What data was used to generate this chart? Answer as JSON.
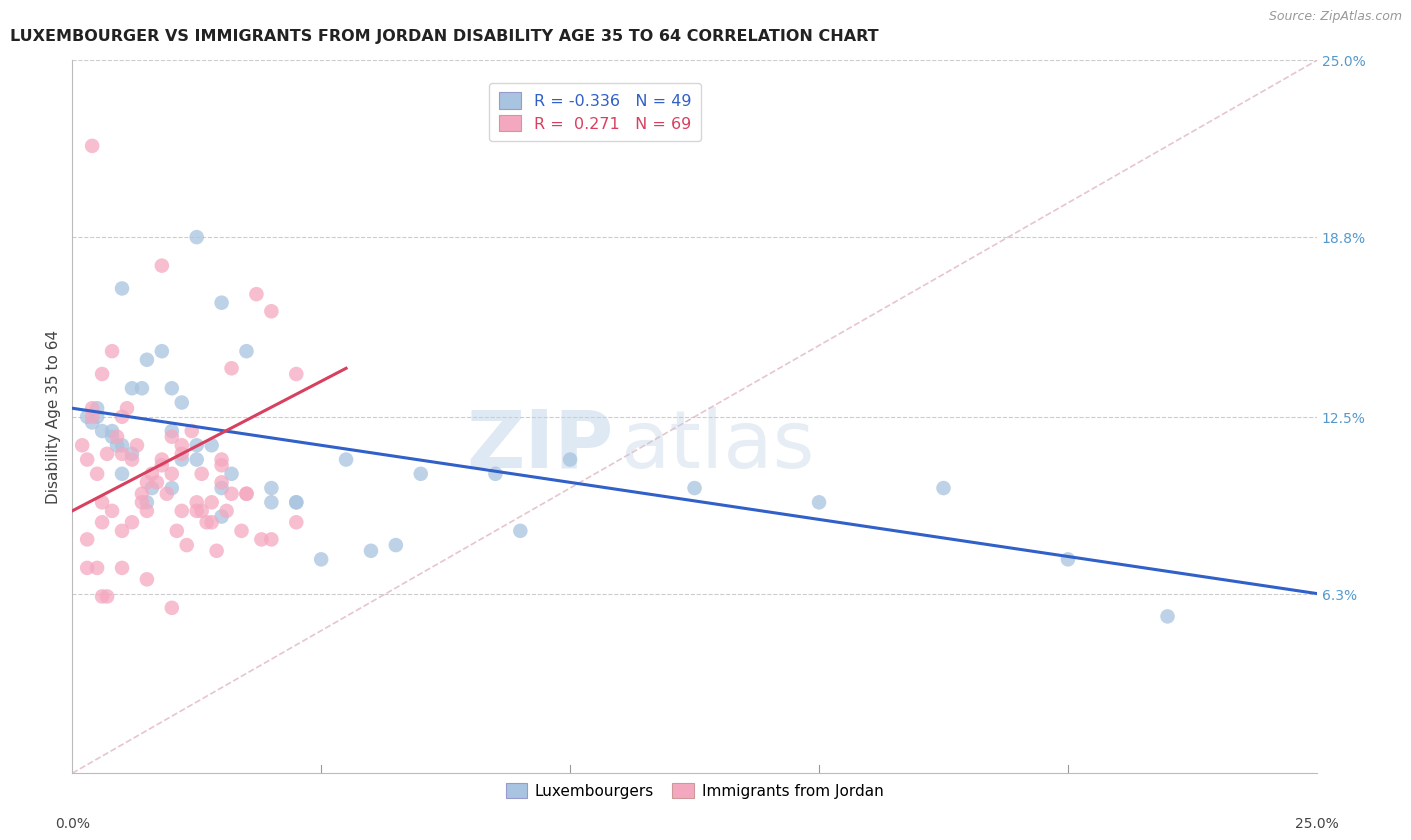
{
  "title": "LUXEMBOURGER VS IMMIGRANTS FROM JORDAN DISABILITY AGE 35 TO 64 CORRELATION CHART",
  "source": "Source: ZipAtlas.com",
  "ylabel": "Disability Age 35 to 64",
  "xlim": [
    0.0,
    25.0
  ],
  "ylim": [
    0.0,
    25.0
  ],
  "ytick_labels": [
    "6.3%",
    "12.5%",
    "18.8%",
    "25.0%"
  ],
  "ytick_values": [
    6.3,
    12.5,
    18.8,
    25.0
  ],
  "blue_R": "-0.336",
  "blue_N": "49",
  "pink_R": "0.271",
  "pink_N": "69",
  "blue_color": "#a8c4e0",
  "pink_color": "#f4a8c0",
  "blue_line_color": "#3060c8",
  "pink_line_color": "#d84060",
  "diag_line_color": "#e0b8c0",
  "watermark_zip": "ZIP",
  "watermark_atlas": "atlas",
  "blue_line_x": [
    0.0,
    25.0
  ],
  "blue_line_y": [
    12.8,
    6.3
  ],
  "pink_line_x": [
    0.0,
    5.5
  ],
  "pink_line_y": [
    9.2,
    14.2
  ],
  "diag_line_x": [
    0.0,
    25.0
  ],
  "diag_line_y": [
    0.0,
    25.0
  ],
  "blue_points_x": [
    0.5,
    1.0,
    1.5,
    2.0,
    2.5,
    3.0,
    0.8,
    1.2,
    1.8,
    2.2,
    2.8,
    3.5,
    0.3,
    0.6,
    1.0,
    1.4,
    2.0,
    2.5,
    3.2,
    4.0,
    4.5,
    5.5,
    7.0,
    8.5,
    10.0,
    12.5,
    15.0,
    17.5,
    20.0,
    22.0,
    1.0,
    1.5,
    2.0,
    2.5,
    3.0,
    4.0,
    5.0,
    6.5,
    9.0,
    0.5,
    0.8,
    1.2,
    1.6,
    2.2,
    3.0,
    4.5,
    6.0,
    0.4,
    0.9
  ],
  "blue_points_y": [
    12.5,
    17.0,
    14.5,
    13.5,
    18.8,
    16.5,
    12.0,
    13.5,
    14.8,
    13.0,
    11.5,
    14.8,
    12.5,
    12.0,
    11.5,
    13.5,
    12.0,
    11.0,
    10.5,
    10.0,
    9.5,
    11.0,
    10.5,
    10.5,
    11.0,
    10.0,
    9.5,
    10.0,
    7.5,
    5.5,
    10.5,
    9.5,
    10.0,
    11.5,
    10.0,
    9.5,
    7.5,
    8.0,
    8.5,
    12.8,
    11.8,
    11.2,
    10.0,
    11.0,
    9.0,
    9.5,
    7.8,
    12.3,
    11.5
  ],
  "pink_points_x": [
    0.2,
    0.4,
    0.6,
    0.8,
    1.0,
    1.2,
    1.4,
    1.6,
    1.8,
    2.0,
    2.2,
    2.4,
    2.6,
    2.8,
    3.0,
    3.2,
    0.3,
    0.5,
    0.7,
    0.9,
    1.1,
    1.3,
    1.5,
    1.7,
    1.9,
    2.1,
    2.3,
    2.5,
    2.7,
    2.9,
    3.1,
    3.4,
    3.7,
    4.0,
    4.5,
    0.4,
    0.6,
    0.8,
    1.0,
    1.5,
    2.0,
    2.5,
    3.0,
    3.5,
    4.0,
    0.3,
    0.5,
    0.7,
    1.2,
    1.8,
    2.2,
    2.8,
    3.2,
    3.8,
    0.4,
    0.6,
    1.0,
    1.4,
    1.8,
    2.2,
    2.6,
    3.0,
    3.5,
    4.5,
    0.3,
    0.6,
    1.0,
    1.5,
    2.0
  ],
  "pink_points_y": [
    11.5,
    12.5,
    14.0,
    14.8,
    12.5,
    11.0,
    9.5,
    10.5,
    11.0,
    10.5,
    11.5,
    12.0,
    10.5,
    9.5,
    11.0,
    14.2,
    11.0,
    10.5,
    11.2,
    11.8,
    12.8,
    11.5,
    9.2,
    10.2,
    9.8,
    8.5,
    8.0,
    9.5,
    8.8,
    7.8,
    9.2,
    8.5,
    16.8,
    16.2,
    14.0,
    12.8,
    8.8,
    9.2,
    11.2,
    10.2,
    11.8,
    9.2,
    10.8,
    9.8,
    8.2,
    8.2,
    7.2,
    6.2,
    8.8,
    17.8,
    9.2,
    8.8,
    9.8,
    8.2,
    22.0,
    9.5,
    8.5,
    9.8,
    10.8,
    11.2,
    9.2,
    10.2,
    9.8,
    8.8,
    7.2,
    6.2,
    7.2,
    6.8,
    5.8
  ]
}
